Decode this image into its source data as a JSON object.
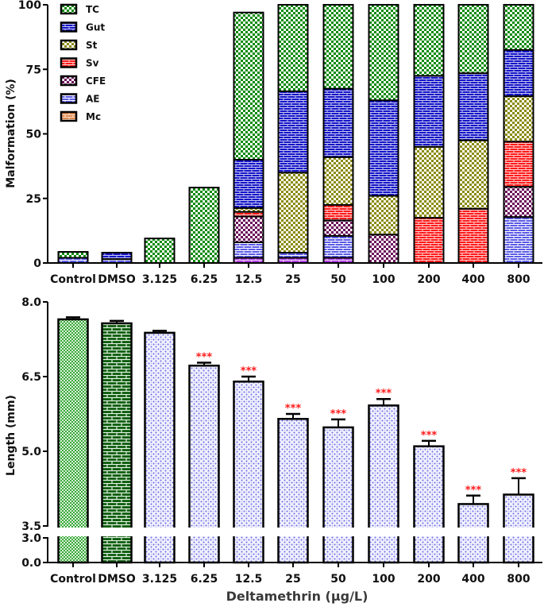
{
  "chart_data": [
    {
      "type": "bar",
      "stacked": true,
      "title": "",
      "xlabel": "",
      "ylabel": "Malformation (%)",
      "ylim": [
        0,
        100
      ],
      "yticks": [
        0,
        25,
        50,
        75,
        100
      ],
      "grid": false,
      "legend_position": "top-left",
      "categories": [
        "Control",
        "DMSO",
        "3.125",
        "6.25",
        "12.5",
        "25",
        "50",
        "100",
        "200",
        "400",
        "800"
      ],
      "series": [
        {
          "name": "Mc",
          "color": "#e08a50",
          "pattern": "brick",
          "values": [
            0,
            0,
            0,
            0,
            2,
            2,
            2,
            0,
            0,
            0,
            0
          ]
        },
        {
          "name": "AE",
          "color": "#3c3cdc",
          "pattern": "brick-light",
          "values": [
            2,
            1.5,
            0,
            0,
            6,
            2,
            8.5,
            0,
            0,
            0,
            17.8
          ]
        },
        {
          "name": "CFE",
          "color": "#6b0f5a",
          "pattern": "check",
          "values": [
            0,
            0,
            0,
            0,
            10,
            0,
            6,
            11,
            0,
            0,
            11.7
          ]
        },
        {
          "name": "Sv",
          "color": "#ff1a1a",
          "pattern": "brick",
          "values": [
            0,
            0,
            0,
            0,
            1.8,
            0,
            6,
            0,
            17.5,
            21,
            17.5
          ]
        },
        {
          "name": "St",
          "color": "#8a8a10",
          "pattern": "check",
          "values": [
            0,
            0,
            0,
            0,
            1.5,
            31,
            18.5,
            15,
            27.5,
            26.5,
            17.6
          ]
        },
        {
          "name": "Gut",
          "color": "#1414c8",
          "pattern": "brick",
          "values": [
            0,
            2.5,
            0,
            0,
            18.7,
            31.5,
            26.5,
            37,
            27.5,
            26,
            17.9
          ]
        },
        {
          "name": "TC",
          "color": "#0a8a0a",
          "pattern": "check",
          "values": [
            2.3,
            0,
            9.5,
            29.2,
            57,
            33.5,
            32.5,
            37,
            27.5,
            26.5,
            17.5
          ]
        }
      ],
      "legend": [
        "TC",
        "Gut",
        "St",
        "Sv",
        "CFE",
        "AE",
        "Mc"
      ]
    },
    {
      "type": "bar",
      "title": "",
      "xlabel": "Deltamethrin (µg/L)",
      "ylabel": "Length (mm)",
      "ylim": [
        0,
        8.0
      ],
      "axis_break": [
        3.0,
        3.5
      ],
      "yticks": [
        "0.0",
        "3.0",
        "3.5",
        "5.0",
        "6.5",
        "8.0"
      ],
      "grid": false,
      "categories": [
        "Control",
        "DMSO",
        "3.125",
        "6.25",
        "12.5",
        "25",
        "50",
        "100",
        "200",
        "400",
        "800"
      ],
      "values": [
        7.65,
        7.57,
        7.38,
        6.72,
        6.4,
        5.65,
        5.48,
        5.92,
        5.1,
        3.94,
        4.13
      ],
      "errors": [
        0.04,
        0.05,
        0.04,
        0.06,
        0.1,
        0.1,
        0.16,
        0.13,
        0.11,
        0.17,
        0.33
      ],
      "significance": [
        "",
        "",
        "",
        "***",
        "***",
        "***",
        "***",
        "***",
        "***",
        "***",
        "***"
      ],
      "bar_styles": [
        "green-check",
        "green-brick",
        "blue-dots",
        "blue-dots",
        "blue-dots",
        "blue-dots",
        "blue-dots",
        "blue-dots",
        "blue-dots",
        "blue-dots",
        "blue-dots"
      ],
      "colors": {
        "green_light": "#3aa83a",
        "green_dark": "#0e5e0e",
        "blue_dots": "#6a6ae0",
        "significance": "#ff1a1a"
      }
    }
  ]
}
